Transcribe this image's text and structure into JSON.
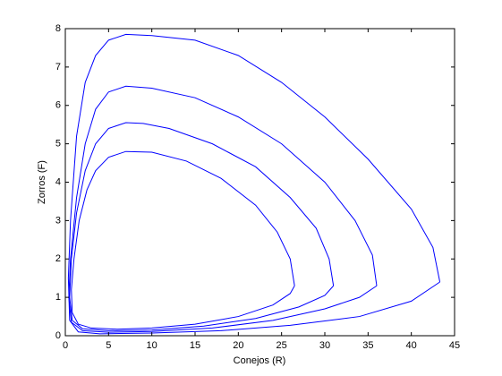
{
  "chart_data": {
    "type": "line",
    "xlabel": "Conejos (R)",
    "ylabel": "Zorros (F)",
    "xlim": [
      0,
      45
    ],
    "ylim": [
      0,
      8
    ],
    "xticks": [
      0,
      5,
      10,
      15,
      20,
      25,
      30,
      35,
      40,
      45
    ],
    "yticks": [
      0,
      1,
      2,
      3,
      4,
      5,
      6,
      7,
      8
    ],
    "series": [
      {
        "color": "#0000ff",
        "x": [
          26.5,
          26,
          24.5,
          22,
          18,
          14,
          10,
          7,
          5,
          3.5,
          2.5,
          1.6,
          1.0,
          0.7,
          0.8,
          1.5,
          3,
          6,
          10,
          15,
          20,
          24,
          26,
          26.5
        ],
        "values": [
          1.3,
          2.0,
          2.7,
          3.4,
          4.1,
          4.55,
          4.78,
          4.8,
          4.65,
          4.3,
          3.8,
          3.0,
          2.0,
          1.2,
          0.6,
          0.3,
          0.2,
          0.17,
          0.2,
          0.3,
          0.5,
          0.8,
          1.1,
          1.3
        ]
      },
      {
        "color": "#0000ff",
        "x": [
          31,
          30.5,
          29,
          26,
          22,
          17,
          12,
          9,
          7,
          5,
          3.5,
          2.3,
          1.3,
          0.7,
          0.5,
          0.8,
          2,
          5,
          10,
          16,
          22,
          27,
          30,
          31
        ],
        "values": [
          1.3,
          2.0,
          2.8,
          3.6,
          4.4,
          5.0,
          5.4,
          5.53,
          5.55,
          5.4,
          5.0,
          4.3,
          3.2,
          2.0,
          1.0,
          0.4,
          0.18,
          0.13,
          0.15,
          0.25,
          0.45,
          0.75,
          1.05,
          1.3
        ]
      },
      {
        "color": "#0000ff",
        "x": [
          36,
          35.5,
          33.5,
          30,
          25,
          20,
          15,
          10,
          7,
          5,
          3.5,
          2.3,
          1.3,
          0.6,
          0.4,
          0.7,
          2,
          5,
          10,
          17,
          24,
          30,
          34,
          36
        ],
        "values": [
          1.3,
          2.1,
          3.0,
          4.0,
          5.0,
          5.7,
          6.2,
          6.45,
          6.5,
          6.35,
          5.9,
          5.0,
          3.6,
          2.0,
          1.0,
          0.35,
          0.13,
          0.09,
          0.11,
          0.2,
          0.4,
          0.7,
          1.0,
          1.3
        ]
      },
      {
        "color": "#0000ff",
        "x": [
          43.3,
          42.5,
          40,
          35,
          30,
          25,
          20,
          15,
          10,
          7,
          5,
          3.5,
          2.3,
          1.3,
          0.6,
          0.35,
          0.5,
          1.5,
          4,
          10,
          18,
          26,
          34,
          40,
          43.3
        ],
        "values": [
          1.4,
          2.3,
          3.3,
          4.6,
          5.7,
          6.6,
          7.3,
          7.7,
          7.82,
          7.85,
          7.7,
          7.3,
          6.6,
          5.2,
          3.0,
          1.5,
          0.4,
          0.1,
          0.05,
          0.07,
          0.13,
          0.27,
          0.5,
          0.9,
          1.4
        ]
      }
    ]
  }
}
